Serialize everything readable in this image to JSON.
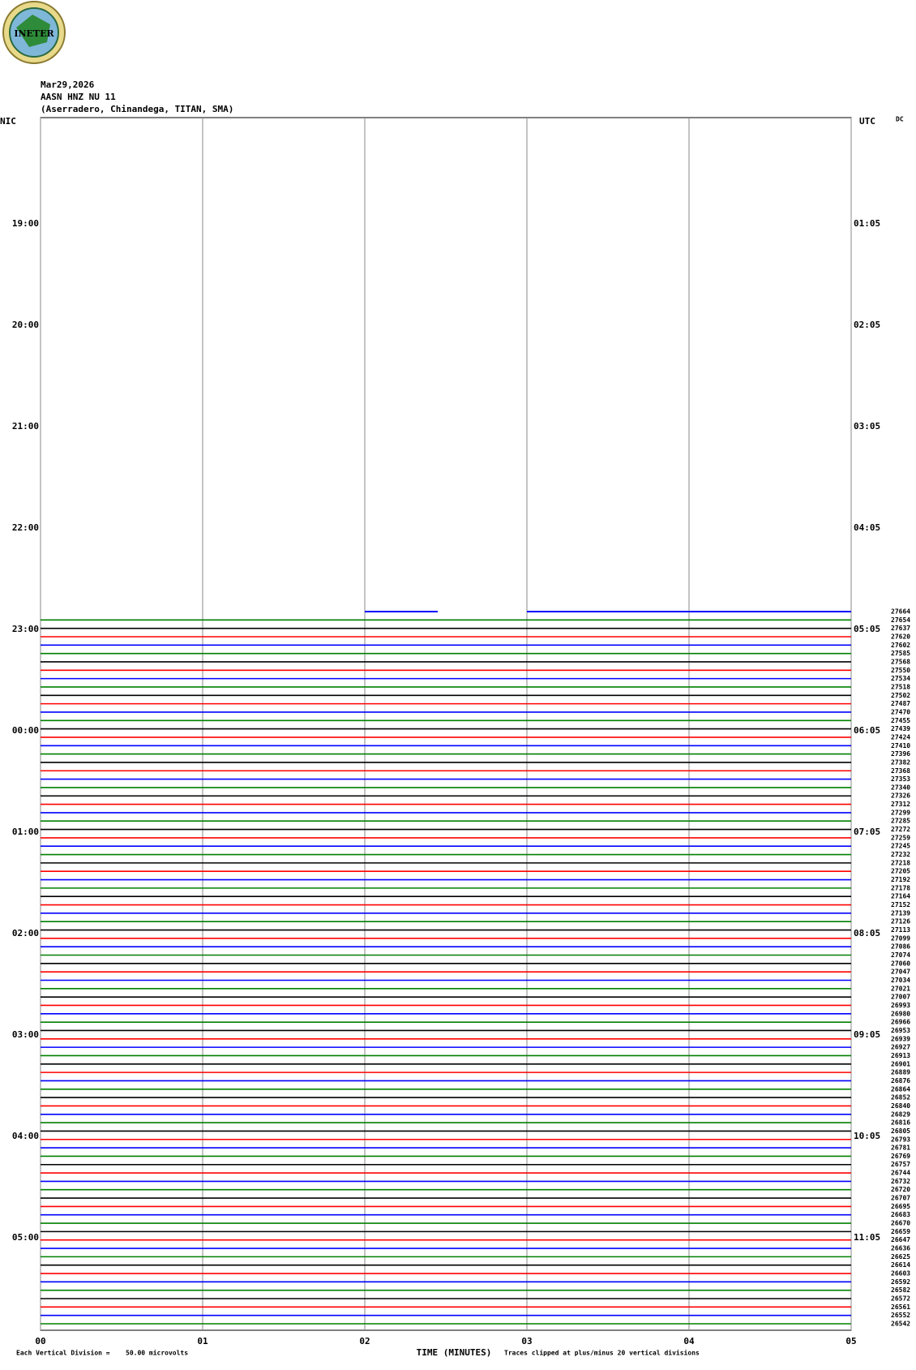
{
  "logo": "INETER",
  "chart_data": {
    "type": "helicorder",
    "title": [
      "Mar29,2026",
      "AASN HNZ NU 11",
      "(Aserradero, Chinandega, TITAN, SMA)"
    ],
    "left_axis_label": "NIC",
    "right_axis_label": "UTC",
    "corner_label": "DC",
    "xlabel": "TIME (MINUTES)",
    "xlim": [
      0,
      5
    ],
    "xticks": [
      {
        "value": 0,
        "label": "00"
      },
      {
        "value": 1,
        "label": "01"
      },
      {
        "value": 2,
        "label": "02"
      },
      {
        "value": 3,
        "label": "03"
      },
      {
        "value": 4,
        "label": "04"
      },
      {
        "value": 5,
        "label": "05"
      }
    ],
    "left_times": [
      "19:00",
      "20:00",
      "21:00",
      "22:00",
      "23:00",
      "00:00",
      "01:00",
      "02:00",
      "03:00",
      "04:00",
      "05:00"
    ],
    "right_times": [
      "01:05",
      "02:05",
      "03:05",
      "04:05",
      "05:05",
      "06:05",
      "07:05",
      "08:05",
      "09:05",
      "10:05",
      "11:05"
    ],
    "trace_colors": [
      "#0000ff",
      "#008000",
      "#000000",
      "#ff0000"
    ],
    "trace_labels": [
      27664,
      27654,
      27637,
      27620,
      27602,
      27585,
      27568,
      27550,
      27534,
      27518,
      27502,
      27487,
      27470,
      27455,
      27439,
      27424,
      27410,
      27396,
      27382,
      27368,
      27353,
      27340,
      27326,
      27312,
      27299,
      27285,
      27272,
      27259,
      27245,
      27232,
      27218,
      27205,
      27192,
      27178,
      27164,
      27152,
      27139,
      27126,
      27113,
      27099,
      27086,
      27074,
      27060,
      27047,
      27034,
      27021,
      27007,
      26993,
      26980,
      26966,
      26953,
      26939,
      26927,
      26913,
      26901,
      26889,
      26876,
      26864,
      26852,
      26840,
      26829,
      26816,
      26805,
      26793,
      26781,
      26769,
      26757,
      26744,
      26732,
      26720,
      26707,
      26695,
      26683,
      26670,
      26659,
      26647,
      26636,
      26625,
      26614,
      26603,
      26592,
      26582,
      26572,
      26561,
      26552,
      26542
    ],
    "footer_left": "Each Vertical Division =",
    "footer_scale": "50.00 microvolts",
    "footer_right": "Traces clipped at plus/minus 20 vertical divisions"
  }
}
